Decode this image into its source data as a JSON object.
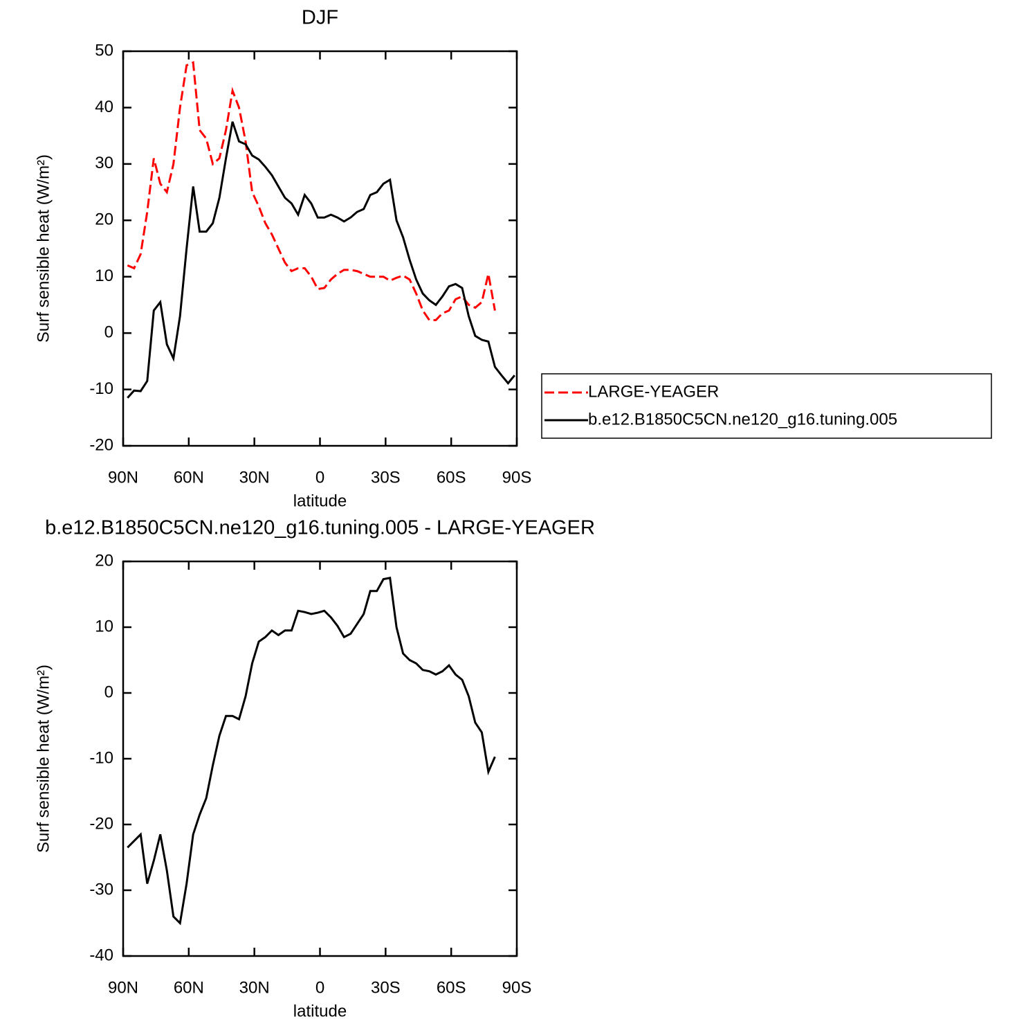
{
  "chart_data": [
    {
      "type": "line",
      "title": "DJF",
      "xlabel": "latitude",
      "ylabel": "Surf sensible heat (W/m²)",
      "x": [
        88,
        85,
        82,
        79,
        76,
        73,
        70,
        67,
        64,
        61,
        58,
        55,
        52,
        49,
        46,
        43,
        40,
        37,
        34,
        31,
        28,
        25,
        22,
        19,
        16,
        13,
        10,
        7,
        4,
        1,
        -2,
        -5,
        -8,
        -11,
        -14,
        -17,
        -20,
        -23,
        -26,
        -29,
        -32,
        -35,
        -38,
        -41,
        -44,
        -47,
        -50,
        -53,
        -56,
        -59,
        -62,
        -65,
        -68,
        -71,
        -74,
        -77,
        -80,
        -83,
        -86,
        -89
      ],
      "series": [
        {
          "name": "LARGE-YEAGER",
          "color": "#ff0000",
          "line_style": "dashed",
          "values": [
            12,
            11.5,
            14,
            21.5,
            31,
            26.5,
            25,
            30,
            40,
            47.5,
            48,
            36,
            34.5,
            30,
            31,
            36,
            43,
            40,
            34,
            25,
            22.5,
            19.5,
            17.5,
            15,
            12.5,
            11,
            11.5,
            11.5,
            10,
            7.8,
            8,
            9.5,
            10.5,
            11.2,
            11.2,
            11,
            10.5,
            10,
            10,
            10,
            9.3,
            9.8,
            10.2,
            9.5,
            7,
            4,
            2.3,
            2.3,
            3.5,
            4,
            6,
            6.5,
            5,
            4.5,
            5.5,
            10.5,
            4,
            null,
            null,
            null
          ]
        },
        {
          "name": "b.e12.B1850C5CN.ne120_g16.tuning.005",
          "color": "#000000",
          "line_style": "solid",
          "values": [
            -11.5,
            -10.2,
            -10.3,
            -8.5,
            4,
            5.5,
            -2,
            -4.5,
            3,
            15,
            26,
            18,
            18,
            19.5,
            24,
            31,
            37.5,
            34,
            33.5,
            31.5,
            30.8,
            29.5,
            28,
            26,
            24,
            23,
            21,
            24.5,
            23,
            20.5,
            20.5,
            21,
            20.5,
            19.8,
            20.5,
            21.5,
            22,
            24.5,
            25,
            26.5,
            27.2,
            20,
            17,
            13,
            9.5,
            7,
            5.8,
            5,
            6.5,
            8.3,
            8.7,
            8,
            3,
            -0.5,
            -1.2,
            -1.5,
            -6,
            -7.5,
            -8.9,
            -7.5
          ]
        }
      ],
      "xlim": [
        90,
        -90
      ],
      "xticks": [
        {
          "value": 90,
          "label": "90N"
        },
        {
          "value": 60,
          "label": "60N"
        },
        {
          "value": 30,
          "label": "30N"
        },
        0,
        {
          "value": -30,
          "label": "30S"
        },
        {
          "value": -60,
          "label": "60S"
        },
        {
          "value": -90,
          "label": "90S"
        }
      ],
      "ylim": [
        -20,
        50
      ],
      "yticks": [
        -20,
        -10,
        0,
        10,
        20,
        30,
        40,
        50
      ],
      "legend": "right"
    },
    {
      "type": "line",
      "title": "b.e12.B1850C5CN.ne120_g16.tuning.005 - LARGE-YEAGER",
      "xlabel": "latitude",
      "ylabel": "Surf sensible heat (W/m²)",
      "x": [
        88,
        85,
        82,
        79,
        76,
        73,
        70,
        67,
        64,
        61,
        58,
        55,
        52,
        49,
        46,
        43,
        40,
        37,
        34,
        31,
        28,
        25,
        22,
        19,
        16,
        13,
        10,
        7,
        4,
        1,
        -2,
        -5,
        -8,
        -11,
        -14,
        -17,
        -20,
        -23,
        -26,
        -29,
        -32,
        -35,
        -38,
        -41,
        -44,
        -47,
        -50,
        -53,
        -56,
        -59,
        -62,
        -65,
        -68,
        -71,
        -74,
        -77,
        -80,
        -83,
        -86,
        -89
      ],
      "series": [
        {
          "color": "#000000",
          "line_style": "solid",
          "values": [
            -23.5,
            -22.5,
            -21.5,
            -29,
            -25.5,
            -21.5,
            -27,
            -34,
            -35,
            -29,
            -21.5,
            -18.5,
            -16,
            -11,
            -6.5,
            -3.5,
            -3.5,
            -4,
            -0.5,
            4.5,
            7.8,
            8.5,
            9.5,
            8.8,
            9.5,
            9.5,
            12.5,
            12.3,
            12,
            12.2,
            12.5,
            11.5,
            10.2,
            8.5,
            9,
            10.5,
            12,
            15.5,
            15.5,
            17.3,
            17.5,
            10,
            6,
            5,
            4.5,
            3.5,
            3.3,
            2.8,
            3.3,
            4.2,
            2.8,
            2,
            -0.5,
            -4.5,
            -6,
            -12,
            -9.7,
            null,
            null,
            null
          ]
        }
      ],
      "xlim": [
        90,
        -90
      ],
      "xticks": [
        {
          "value": 90,
          "label": "90N"
        },
        {
          "value": 60,
          "label": "60N"
        },
        {
          "value": 30,
          "label": "30N"
        },
        0,
        {
          "value": -30,
          "label": "30S"
        },
        {
          "value": -60,
          "label": "60S"
        },
        {
          "value": -90,
          "label": "90S"
        }
      ],
      "ylim": [
        -40,
        20
      ],
      "yticks": [
        -40,
        -30,
        -20,
        -10,
        0,
        10,
        20
      ]
    }
  ]
}
